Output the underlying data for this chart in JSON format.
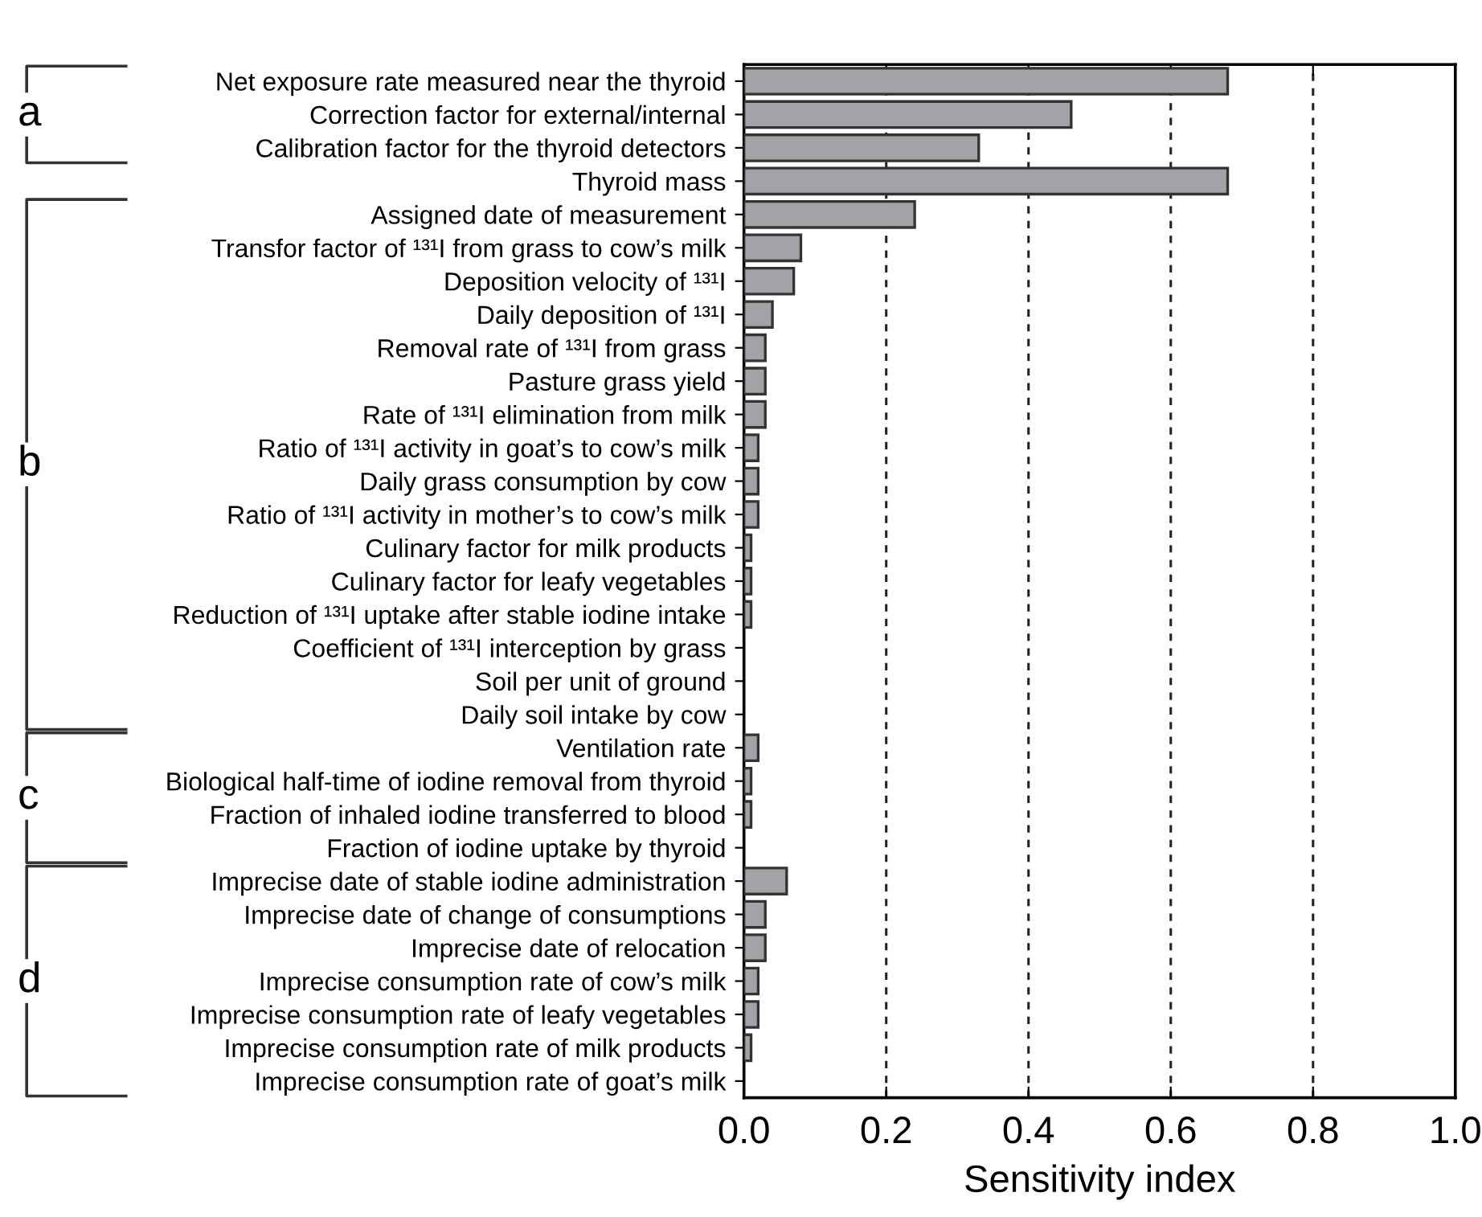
{
  "chart_data": {
    "type": "bar",
    "orientation": "horizontal",
    "xlabel": "Sensitivity index",
    "categories": [
      "Net exposure rate measured near the thyroid",
      "Correction factor for external/internal",
      "Calibration factor for the thyroid detectors",
      "Thyroid mass",
      "Assigned date of measurement",
      "Transfor factor of ¹³¹I from grass to cow’s milk",
      "Deposition velocity of ¹³¹I",
      "Daily deposition of ¹³¹I",
      "Removal rate of ¹³¹I from grass",
      "Pasture grass yield",
      "Rate of ¹³¹I elimination from milk",
      "Ratio of ¹³¹I activity in goat’s to cow’s milk",
      "Daily grass consumption by cow",
      "Ratio of ¹³¹I activity in mother’s to cow’s milk",
      "Culinary factor for milk products",
      "Culinary factor for leafy vegetables",
      "Reduction of ¹³¹I uptake after stable iodine intake",
      "Coefficient of ¹³¹I interception by grass",
      "Soil per unit of ground",
      "Daily soil intake by cow",
      "Ventilation rate",
      "Biological half-time of iodine removal from thyroid",
      "Fraction of inhaled iodine transferred to blood",
      "Fraction of iodine uptake by thyroid",
      "Imprecise date of stable iodine administration",
      "Imprecise date of change of consumptions",
      "Imprecise date of relocation",
      "Imprecise consumption rate of cow’s milk",
      "Imprecise consumption rate of leafy vegetables",
      "Imprecise consumption rate of milk products",
      "Imprecise consumption rate of goat’s milk"
    ],
    "values": [
      0.68,
      0.46,
      0.33,
      0.68,
      0.24,
      0.08,
      0.07,
      0.04,
      0.03,
      0.03,
      0.03,
      0.02,
      0.02,
      0.02,
      0.01,
      0.01,
      0.01,
      0,
      0,
      0,
      0.02,
      0.01,
      0.01,
      0,
      0.06,
      0.03,
      0.03,
      0.02,
      0.02,
      0.01,
      0
    ],
    "color": "#a3a3a7",
    "xlim": [
      0,
      1.0
    ],
    "xticks": [
      {
        "value": 0,
        "label": "0.0"
      },
      {
        "value": 0.2,
        "label": "0.2"
      },
      {
        "value": 0.4,
        "label": "0.4"
      },
      {
        "value": 0.6,
        "label": "0.6"
      },
      {
        "value": 0.8,
        "label": "0.8"
      },
      {
        "value": 1.0,
        "label": "1.0"
      }
    ],
    "grid": "x",
    "annotations": [
      "a",
      "b",
      "c",
      "d"
    ]
  }
}
